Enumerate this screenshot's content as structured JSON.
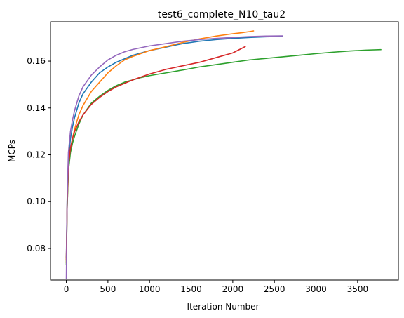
{
  "chart_data": {
    "type": "line",
    "title": "test6_complete_N10_tau2",
    "xlabel": "Iteration Number",
    "ylabel": "MCPs",
    "xlim": [
      -190,
      3990
    ],
    "ylim": [
      0.0665,
      0.1768
    ],
    "xticks": [
      0,
      500,
      1000,
      1500,
      2000,
      2500,
      3000,
      3500
    ],
    "yticks": [
      0.08,
      0.1,
      0.12,
      0.14,
      0.16
    ],
    "xtick_labels": [
      "0",
      "500",
      "1000",
      "1500",
      "2000",
      "2500",
      "3000",
      "3500"
    ],
    "ytick_labels": [
      "0.08",
      "0.10",
      "0.12",
      "0.14",
      "0.16"
    ],
    "grid": false,
    "legend": "none",
    "series": [
      {
        "color": "#1f77b4",
        "x": [
          0,
          10,
          25,
          50,
          75,
          100,
          150,
          200,
          300,
          400,
          500,
          600,
          700,
          800,
          1000,
          1200,
          1400,
          1600,
          1800,
          2000,
          2200,
          2400,
          2600
        ],
        "y": [
          0.076,
          0.1,
          0.118,
          0.127,
          0.132,
          0.136,
          0.142,
          0.146,
          0.151,
          0.155,
          0.1575,
          0.1595,
          0.161,
          0.1625,
          0.1645,
          0.166,
          0.1675,
          0.1685,
          0.1692,
          0.1697,
          0.1701,
          0.1704,
          0.1707
        ]
      },
      {
        "color": "#ff7f0e",
        "x": [
          0,
          10,
          25,
          50,
          75,
          100,
          150,
          200,
          300,
          400,
          500,
          600,
          700,
          800,
          1000,
          1200,
          1400,
          1600,
          1800,
          2000,
          2100,
          2200,
          2250
        ],
        "y": [
          0.074,
          0.097,
          0.114,
          0.122,
          0.127,
          0.131,
          0.137,
          0.141,
          0.147,
          0.151,
          0.155,
          0.158,
          0.1605,
          0.162,
          0.1645,
          0.1662,
          0.168,
          0.1695,
          0.1707,
          0.1717,
          0.1721,
          0.1726,
          0.1729
        ]
      },
      {
        "color": "#2ca02c",
        "x": [
          0,
          10,
          25,
          50,
          75,
          100,
          150,
          200,
          300,
          400,
          500,
          600,
          700,
          800,
          900,
          1000,
          1200,
          1400,
          1600,
          1800,
          2000,
          2200,
          2500,
          2800,
          3000,
          3200,
          3400,
          3600,
          3780
        ],
        "y": [
          0.073,
          0.097,
          0.113,
          0.121,
          0.125,
          0.128,
          0.133,
          0.137,
          0.142,
          0.145,
          0.1475,
          0.1495,
          0.151,
          0.152,
          0.153,
          0.1538,
          0.155,
          0.1562,
          0.1575,
          0.1585,
          0.1595,
          0.1605,
          0.1615,
          0.1625,
          0.1632,
          0.1638,
          0.1643,
          0.1647,
          0.1649
        ]
      },
      {
        "color": "#d62728",
        "x": [
          0,
          10,
          25,
          50,
          75,
          100,
          150,
          200,
          300,
          400,
          500,
          600,
          700,
          800,
          1000,
          1200,
          1400,
          1600,
          1800,
          2000,
          2150
        ],
        "y": [
          0.075,
          0.099,
          0.115,
          0.123,
          0.127,
          0.13,
          0.134,
          0.137,
          0.1415,
          0.1445,
          0.147,
          0.149,
          0.1505,
          0.152,
          0.1545,
          0.1565,
          0.158,
          0.1595,
          0.1615,
          0.1635,
          0.1662
        ]
      },
      {
        "color": "#9467bd",
        "x": [
          0,
          10,
          25,
          50,
          75,
          100,
          150,
          200,
          300,
          400,
          500,
          600,
          700,
          800,
          1000,
          1200,
          1400,
          1600,
          1800,
          2000,
          2200,
          2400,
          2600
        ],
        "y": [
          0.067,
          0.101,
          0.121,
          0.13,
          0.135,
          0.139,
          0.145,
          0.149,
          0.154,
          0.1575,
          0.1605,
          0.1625,
          0.164,
          0.165,
          0.1665,
          0.1675,
          0.1685,
          0.1692,
          0.1697,
          0.1701,
          0.1705,
          0.1707,
          0.1708
        ]
      }
    ]
  }
}
